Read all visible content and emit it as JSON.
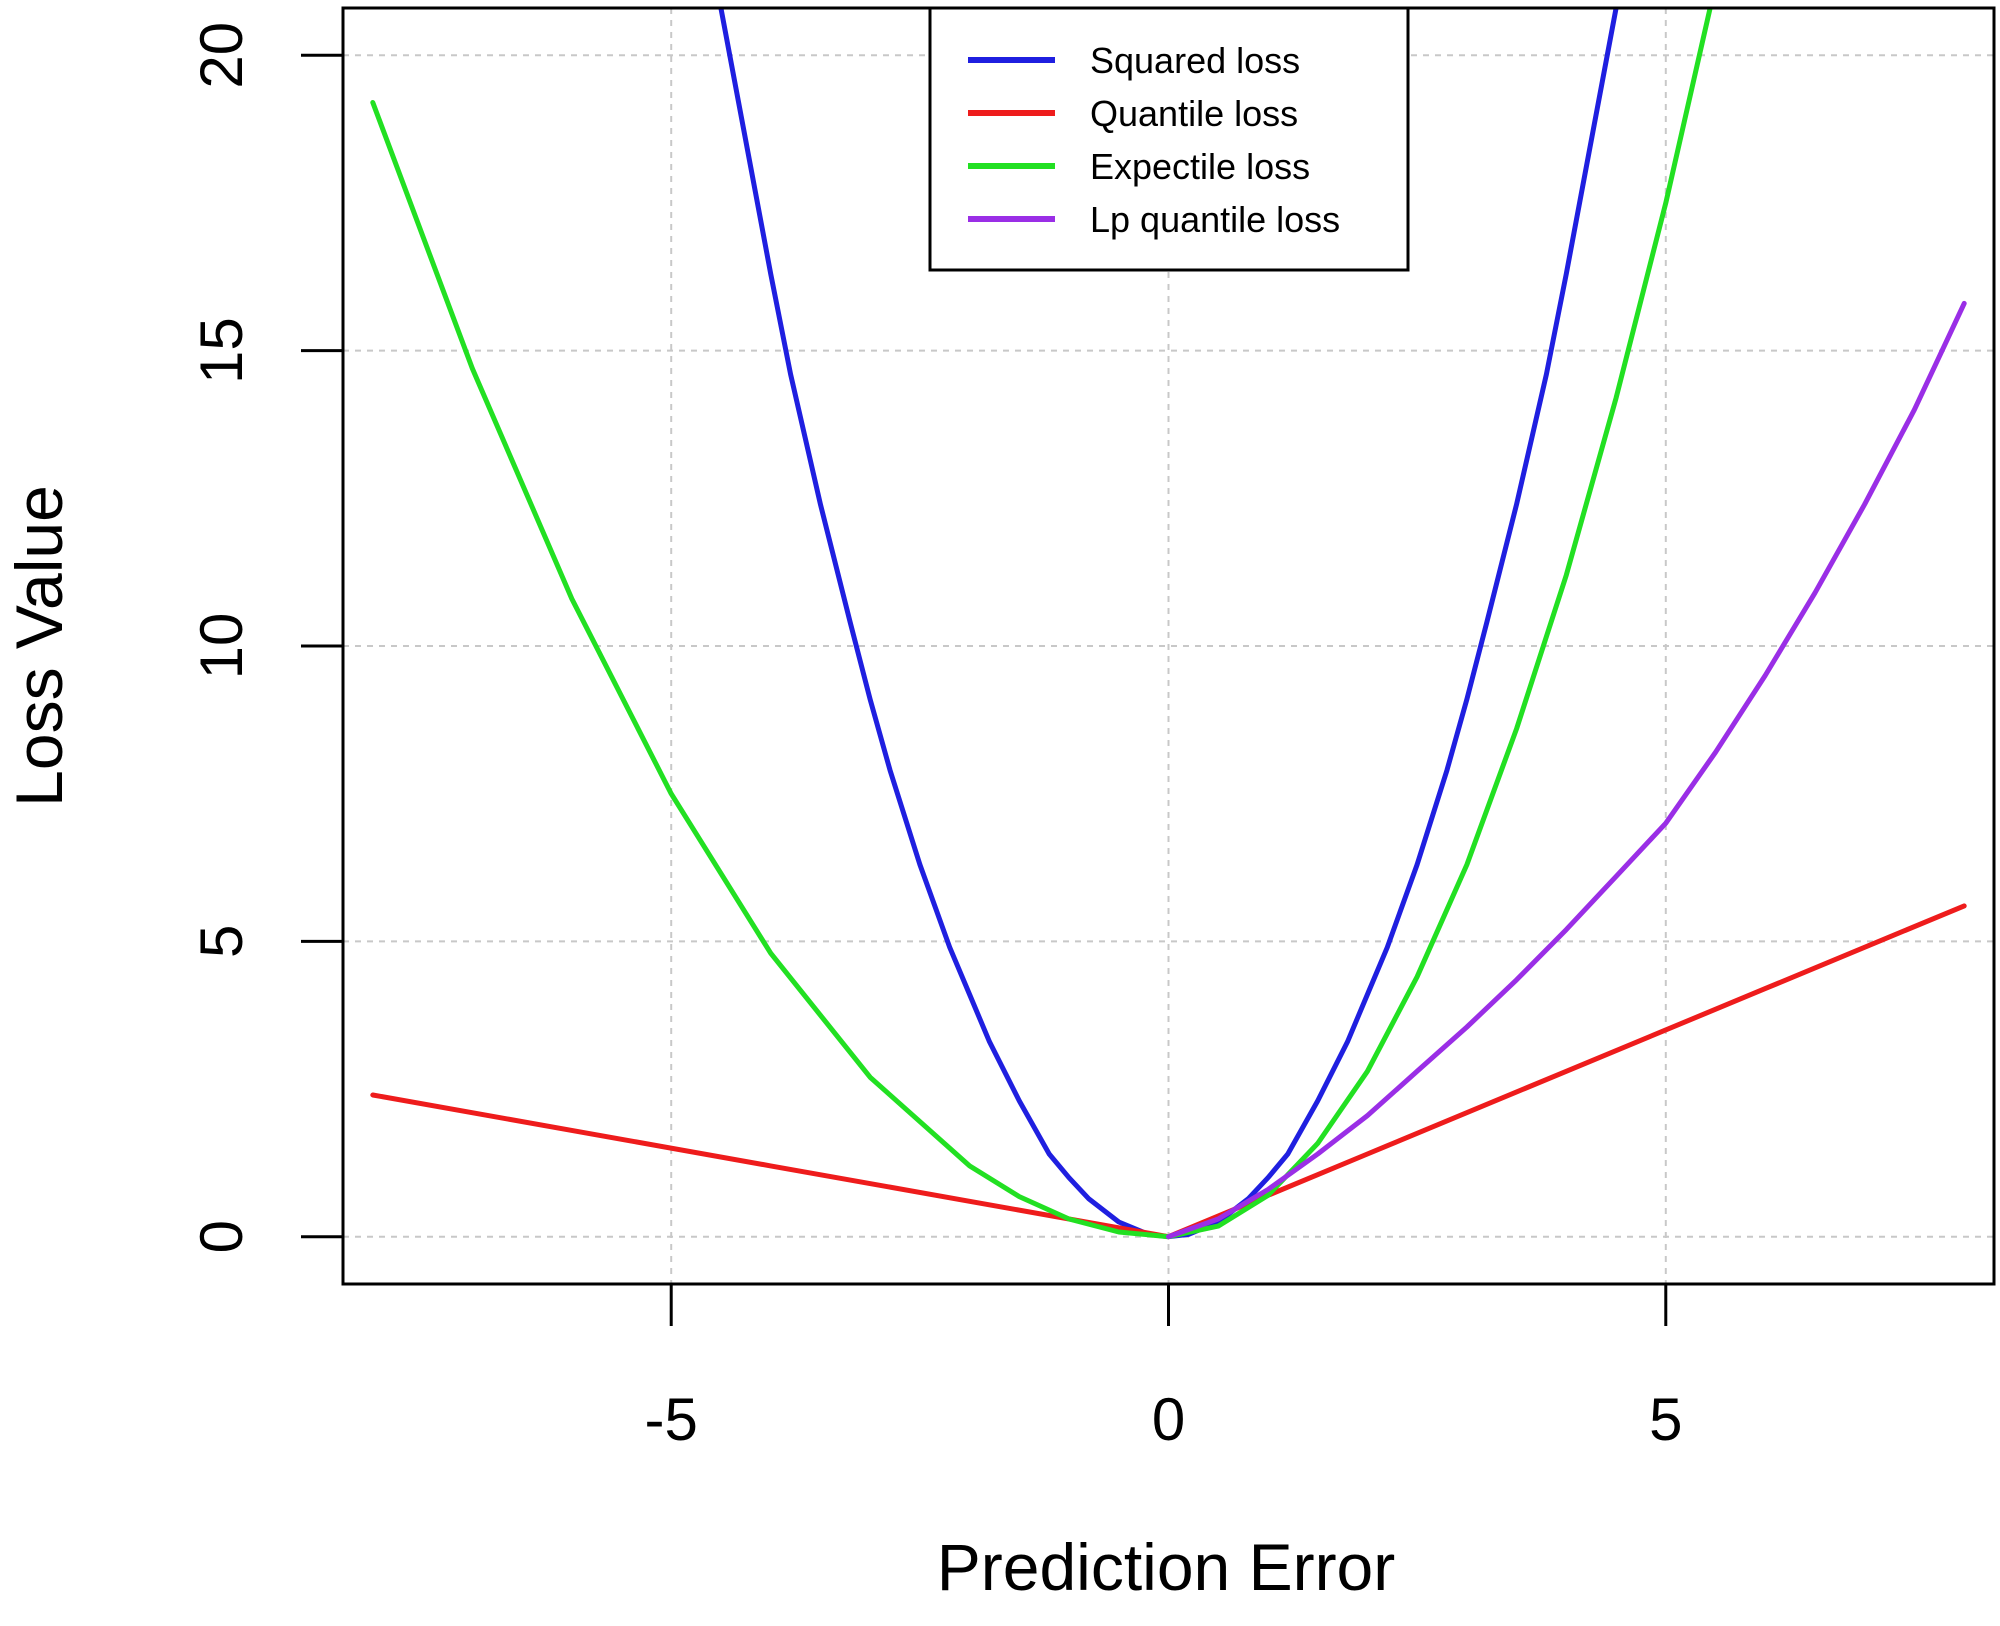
{
  "chart_data": {
    "type": "line",
    "title": "",
    "xlabel": "Prediction Error",
    "ylabel": "Loss Value",
    "xlim": [
      -8.3,
      8.3
    ],
    "ylim": [
      -0.8,
      20.8
    ],
    "xticks": [
      -5,
      0,
      5
    ],
    "yticks": [
      0,
      5,
      10,
      15,
      20
    ],
    "xtick_labels": [
      "-5",
      "0",
      "5"
    ],
    "ytick_labels": [
      "0",
      "5",
      "10",
      "15",
      "20"
    ],
    "grid": true,
    "legend_position": "top-center",
    "series": [
      {
        "name": "Squared loss",
        "color": "#1f1fe0",
        "x": [
          -4.5,
          -4.2,
          -4.0,
          -3.8,
          -3.5,
          -3.2,
          -3.0,
          -2.8,
          -2.5,
          -2.2,
          -2.0,
          -1.8,
          -1.5,
          -1.2,
          -1.0,
          -0.8,
          -0.5,
          -0.2,
          0.0,
          0.2,
          0.5,
          0.8,
          1.0,
          1.2,
          1.5,
          1.8,
          2.0,
          2.2,
          2.5,
          2.8,
          3.0,
          3.2,
          3.5,
          3.8,
          4.0,
          4.2,
          4.5
        ],
        "y": [
          20.8,
          18.1,
          16.3,
          14.6,
          12.4,
          10.4,
          9.1,
          7.9,
          6.3,
          4.9,
          4.1,
          3.3,
          2.3,
          1.4,
          1.0,
          0.64,
          0.25,
          0.04,
          0.0,
          0.04,
          0.25,
          0.64,
          1.0,
          1.4,
          2.3,
          3.3,
          4.1,
          4.9,
          6.3,
          7.9,
          9.1,
          10.4,
          12.4,
          14.6,
          16.3,
          18.1,
          20.8
        ]
      },
      {
        "name": "Quantile loss",
        "color": "#ee1c1c",
        "x": [
          -8.0,
          -6.0,
          -4.0,
          -2.0,
          0.0,
          2.0,
          4.0,
          6.0,
          8.0
        ],
        "y": [
          2.4,
          1.8,
          1.2,
          0.6,
          0.0,
          1.4,
          2.8,
          4.2,
          5.6
        ]
      },
      {
        "name": "Expectile loss",
        "color": "#22e022",
        "x": [
          -8.0,
          -7.0,
          -6.0,
          -5.0,
          -4.0,
          -3.0,
          -2.0,
          -1.5,
          -1.0,
          -0.5,
          0.0,
          0.5,
          1.0,
          1.5,
          2.0,
          2.5,
          3.0,
          3.5,
          4.0,
          4.5,
          5.0,
          5.5
        ],
        "y": [
          19.2,
          14.7,
          10.8,
          7.5,
          4.8,
          2.7,
          1.2,
          0.68,
          0.3,
          0.08,
          0.0,
          0.18,
          0.7,
          1.58,
          2.8,
          4.4,
          6.3,
          8.6,
          11.2,
          14.2,
          17.5,
          21.2
        ]
      },
      {
        "name": "Lp quantile loss",
        "color": "#9a2ee6",
        "x": [
          0.0,
          0.5,
          1.0,
          1.5,
          2.0,
          2.5,
          3.0,
          3.5,
          4.0,
          4.5,
          5.0,
          5.5,
          6.0,
          6.5,
          7.0,
          7.5,
          8.0
        ],
        "y": [
          0.0,
          0.3,
          0.8,
          1.4,
          2.05,
          2.8,
          3.55,
          4.35,
          5.2,
          6.1,
          7.0,
          8.2,
          9.5,
          10.9,
          12.4,
          14.0,
          15.8
        ]
      }
    ]
  }
}
